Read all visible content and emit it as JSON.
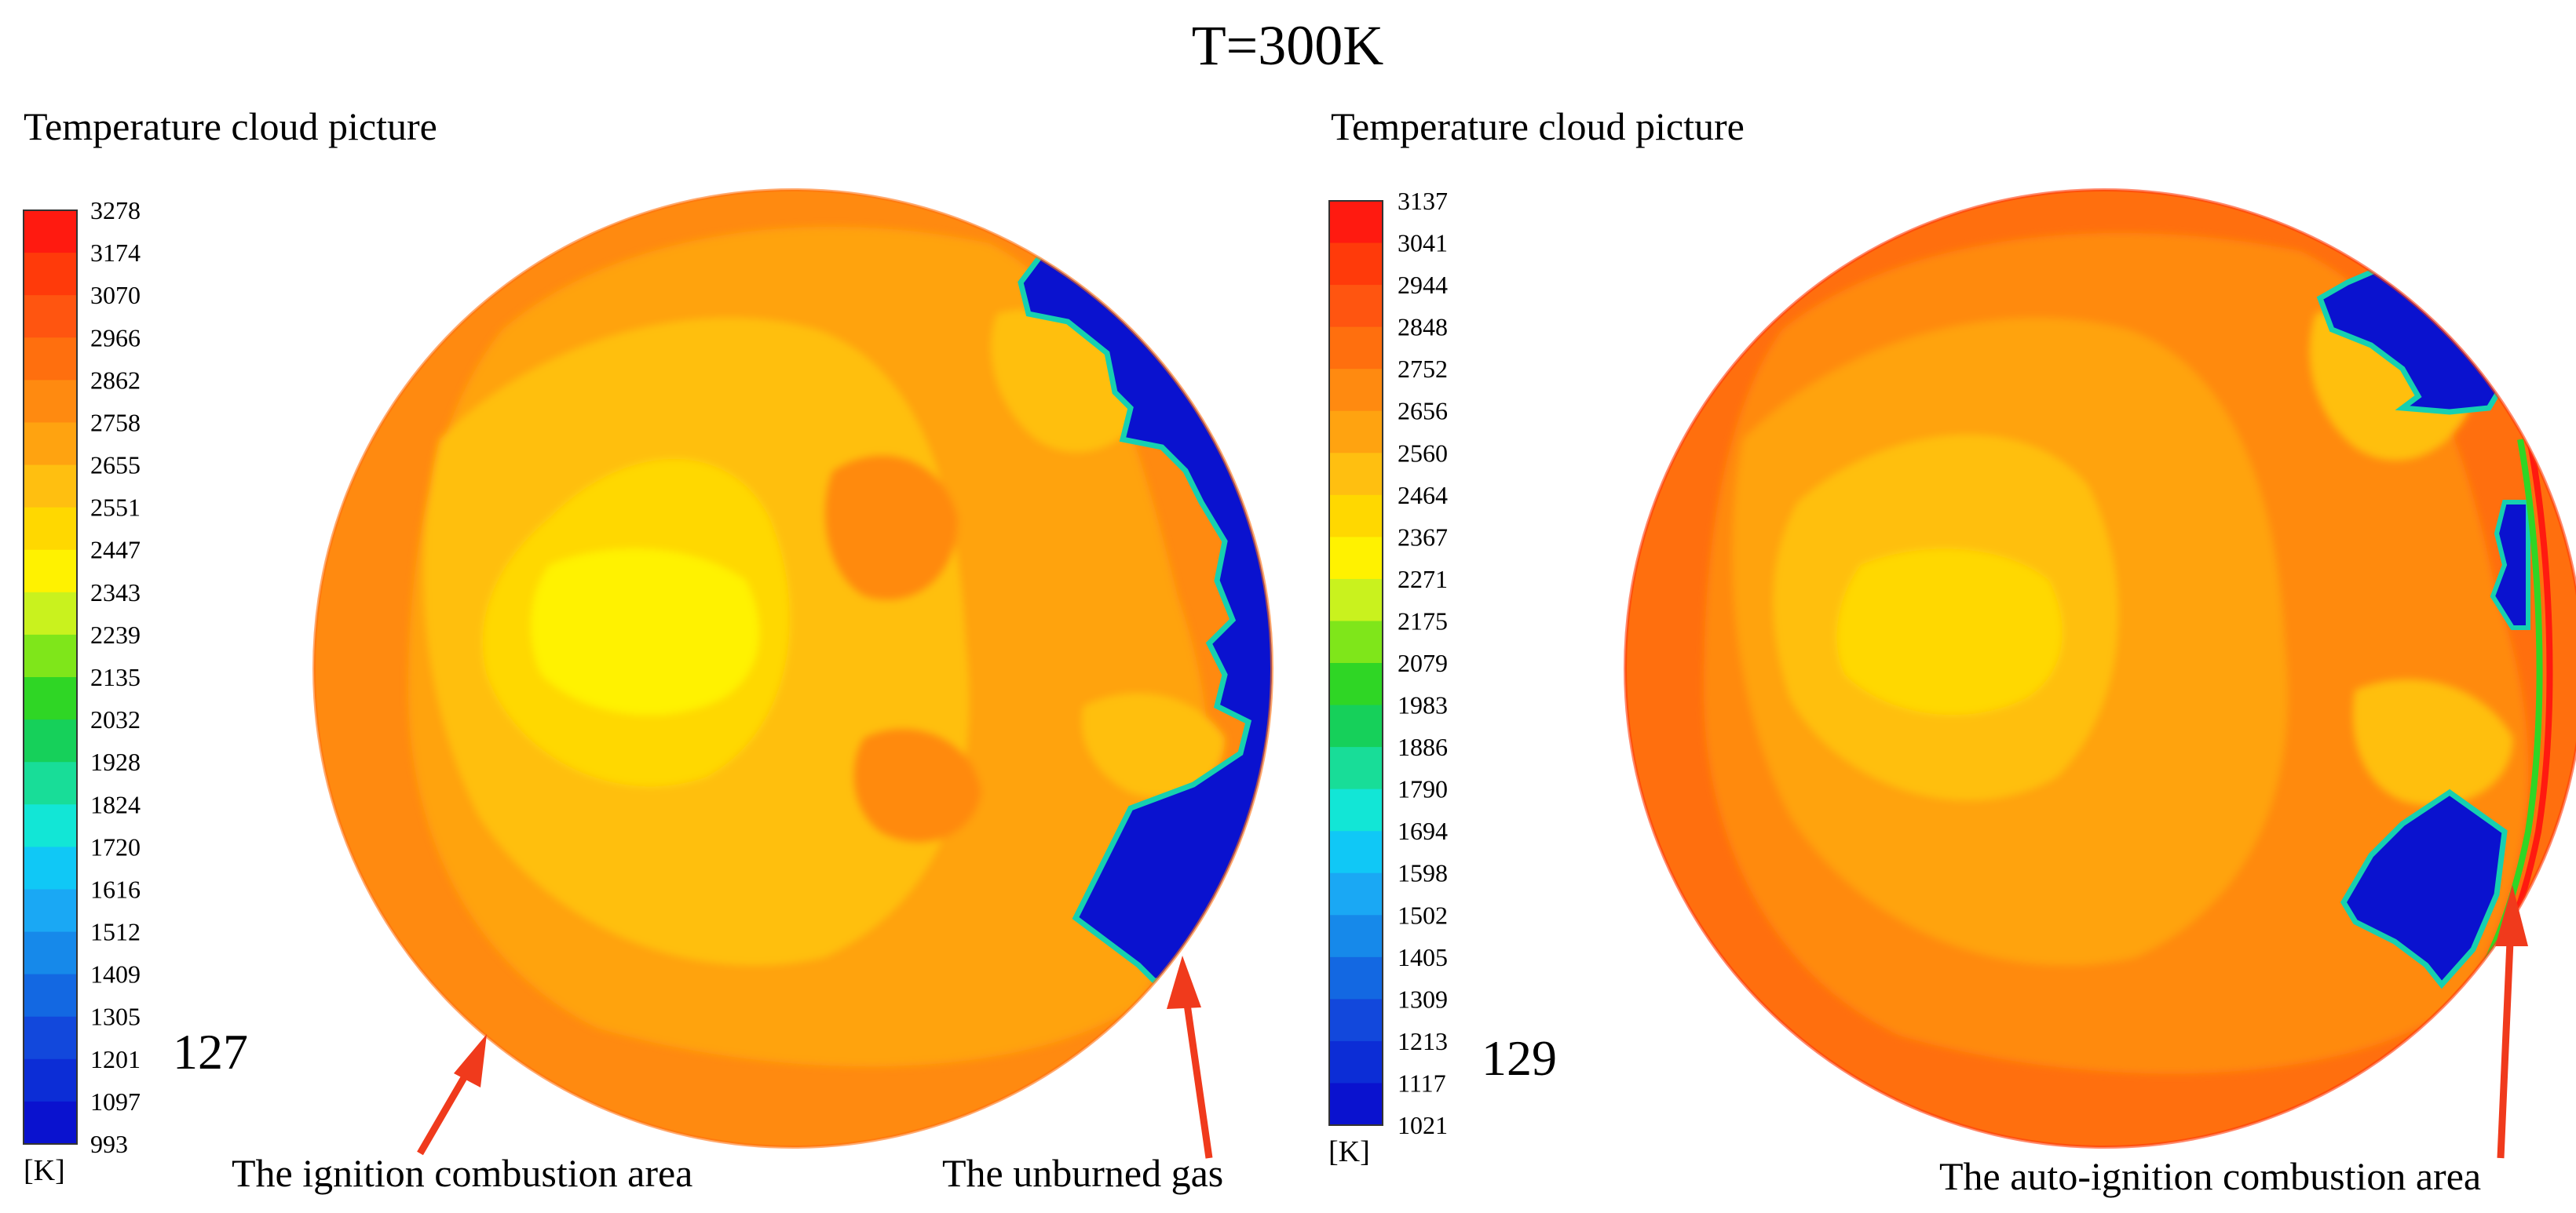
{
  "figure": {
    "title": "T=300K",
    "arrow_color": "#f03a1c",
    "panels": [
      {
        "id": "left",
        "legend_title": "Temperature cloud picture",
        "unit": "[K]",
        "scale_values": [
          "3278",
          "3174",
          "3070",
          "2966",
          "2862",
          "2758",
          "2655",
          "2551",
          "2447",
          "2343",
          "2239",
          "2135",
          "2032",
          "1928",
          "1824",
          "1720",
          "1616",
          "1512",
          "1409",
          "1305",
          "1201",
          "1097",
          "993"
        ],
        "frame_label": "127",
        "annotations": [
          "The ignition combustion area",
          "The unburned gas"
        ]
      },
      {
        "id": "right",
        "legend_title": "Temperature cloud picture",
        "unit": "[K]",
        "scale_values": [
          "3137",
          "3041",
          "2944",
          "2848",
          "2752",
          "2656",
          "2560",
          "2464",
          "2367",
          "2271",
          "2175",
          "2079",
          "1983",
          "1886",
          "1790",
          "1694",
          "1598",
          "1502",
          "1405",
          "1309",
          "1213",
          "1117",
          "1021"
        ],
        "frame_label": "129",
        "annotations": [
          "The auto-ignition combustion area"
        ]
      }
    ],
    "colormap": [
      "#ff1a10",
      "#ff3a0a",
      "#ff5510",
      "#ff6f0e",
      "#ff8a10",
      "#ffa310",
      "#ffbf10",
      "#ffd800",
      "#fff200",
      "#c9f21e",
      "#7fe61a",
      "#2fd625",
      "#16d05a",
      "#18dd98",
      "#12e6d6",
      "#10c8f6",
      "#1aa8f4",
      "#1689ea",
      "#1368e2",
      "#1248dc",
      "#0c2dd6",
      "#0a12cf"
    ]
  }
}
